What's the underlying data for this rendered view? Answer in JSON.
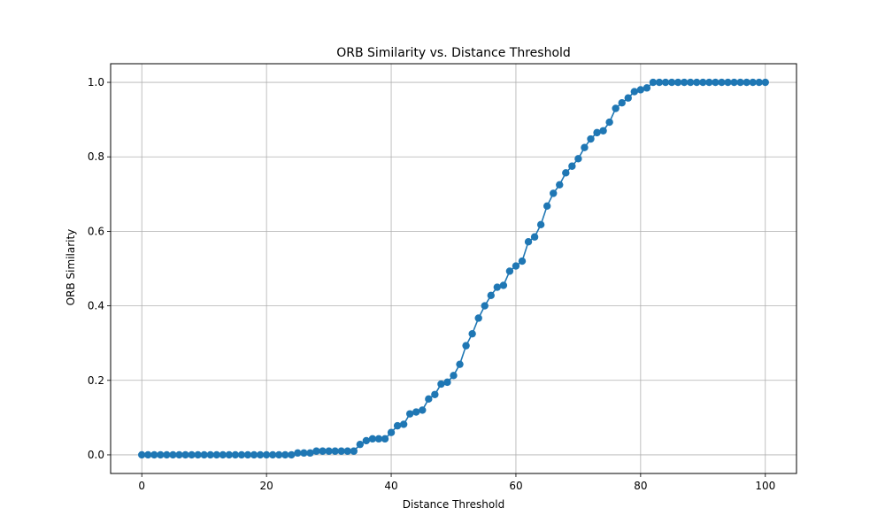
{
  "chart_data": {
    "type": "line",
    "title": "ORB Similarity vs. Distance Threshold",
    "xlabel": "Distance Threshold",
    "ylabel": "ORB Similarity",
    "xlim": [
      -5,
      105
    ],
    "ylim": [
      -0.05,
      1.05
    ],
    "xticks": [
      0,
      20,
      40,
      60,
      80,
      100
    ],
    "yticks": [
      0.0,
      0.2,
      0.4,
      0.6,
      0.8,
      1.0
    ],
    "xtick_labels": [
      "0",
      "20",
      "40",
      "60",
      "80",
      "100"
    ],
    "ytick_labels": [
      "0.0",
      "0.2",
      "0.4",
      "0.6",
      "0.8",
      "1.0"
    ],
    "grid": true,
    "marker": "circle",
    "color": "#1f77b4",
    "series": [
      {
        "x": [
          0,
          1,
          2,
          3,
          4,
          5,
          6,
          7,
          8,
          9,
          10,
          11,
          12,
          13,
          14,
          15,
          16,
          17,
          18,
          19,
          20,
          21,
          22,
          23,
          24,
          25,
          26,
          27,
          28,
          29,
          30,
          31,
          32,
          33,
          34,
          35,
          36,
          37,
          38,
          39,
          40,
          41,
          42,
          43,
          44,
          45,
          46,
          47,
          48,
          49,
          50,
          51,
          52,
          53,
          54,
          55,
          56,
          57,
          58,
          59,
          60,
          61,
          62,
          63,
          64,
          65,
          66,
          67,
          68,
          69,
          70,
          71,
          72,
          73,
          74,
          75,
          76,
          77,
          78,
          79,
          80,
          81,
          82,
          83,
          84,
          85,
          86,
          87,
          88,
          89,
          90,
          91,
          92,
          93,
          94,
          95,
          96,
          97,
          98,
          99,
          100
        ],
        "values": [
          0,
          0,
          0,
          0,
          0,
          0,
          0,
          0,
          0,
          0,
          0,
          0,
          0,
          0,
          0,
          0,
          0,
          0,
          0,
          0,
          0,
          0,
          0,
          0,
          0,
          0.005,
          0.005,
          0.005,
          0.01,
          0.01,
          0.01,
          0.01,
          0.01,
          0.01,
          0.01,
          0.028,
          0.038,
          0.043,
          0.043,
          0.043,
          0.06,
          0.078,
          0.082,
          0.11,
          0.115,
          0.12,
          0.15,
          0.162,
          0.19,
          0.195,
          0.213,
          0.243,
          0.293,
          0.325,
          0.367,
          0.4,
          0.428,
          0.45,
          0.455,
          0.493,
          0.507,
          0.52,
          0.572,
          0.585,
          0.618,
          0.668,
          0.702,
          0.725,
          0.757,
          0.775,
          0.795,
          0.825,
          0.848,
          0.865,
          0.87,
          0.893,
          0.93,
          0.945,
          0.958,
          0.975,
          0.98,
          0.985,
          1,
          1,
          1,
          1,
          1,
          1,
          1,
          1,
          1,
          1,
          1,
          1,
          1,
          1,
          1,
          1,
          1,
          1,
          1
        ]
      }
    ]
  }
}
